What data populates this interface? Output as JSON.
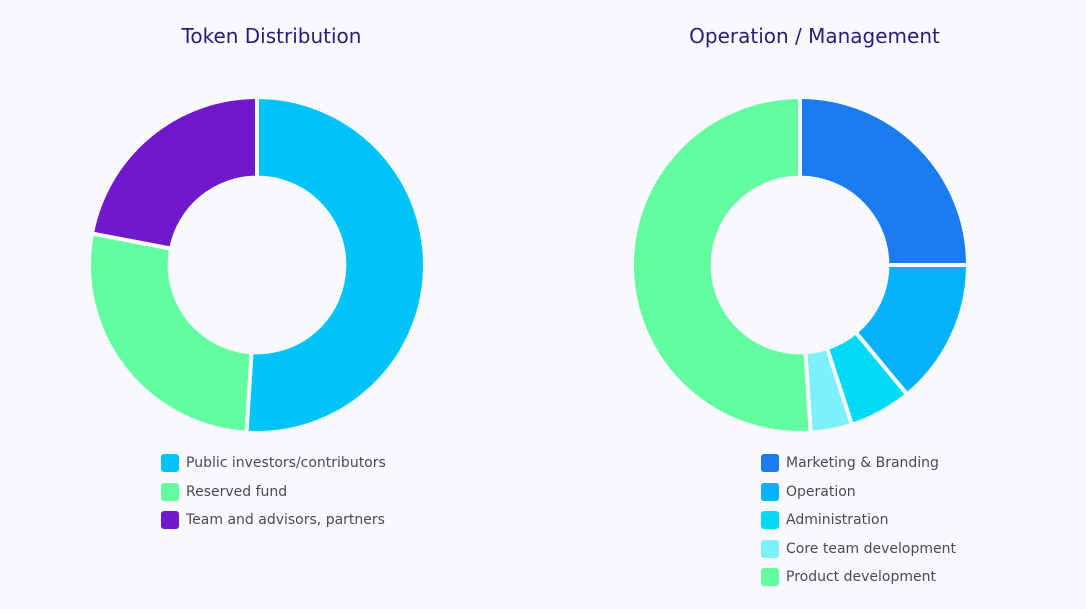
{
  "chart_data": [
    {
      "type": "pie",
      "title": "Token Distribution",
      "labels": [
        "Public investors/contributors",
        "Reserved fund",
        "Team and advisors, partners"
      ],
      "values": [
        51,
        27,
        22
      ],
      "colors": [
        "#00c4f7",
        "#63fca0",
        "#7019cb"
      ],
      "hole": 0.52,
      "legend": "bottom"
    },
    {
      "type": "pie",
      "title": "Operation / Management",
      "labels": [
        "Marketing & Branding",
        "Operation",
        "Administration",
        "Core team development",
        "Product development"
      ],
      "values": [
        25,
        14,
        6,
        4,
        51
      ],
      "colors": [
        "#1a7cf0",
        "#05b1f8",
        "#00daf6",
        "#7df0fd",
        "#63fca0"
      ],
      "hole": 0.52,
      "legend": "bottom"
    }
  ]
}
